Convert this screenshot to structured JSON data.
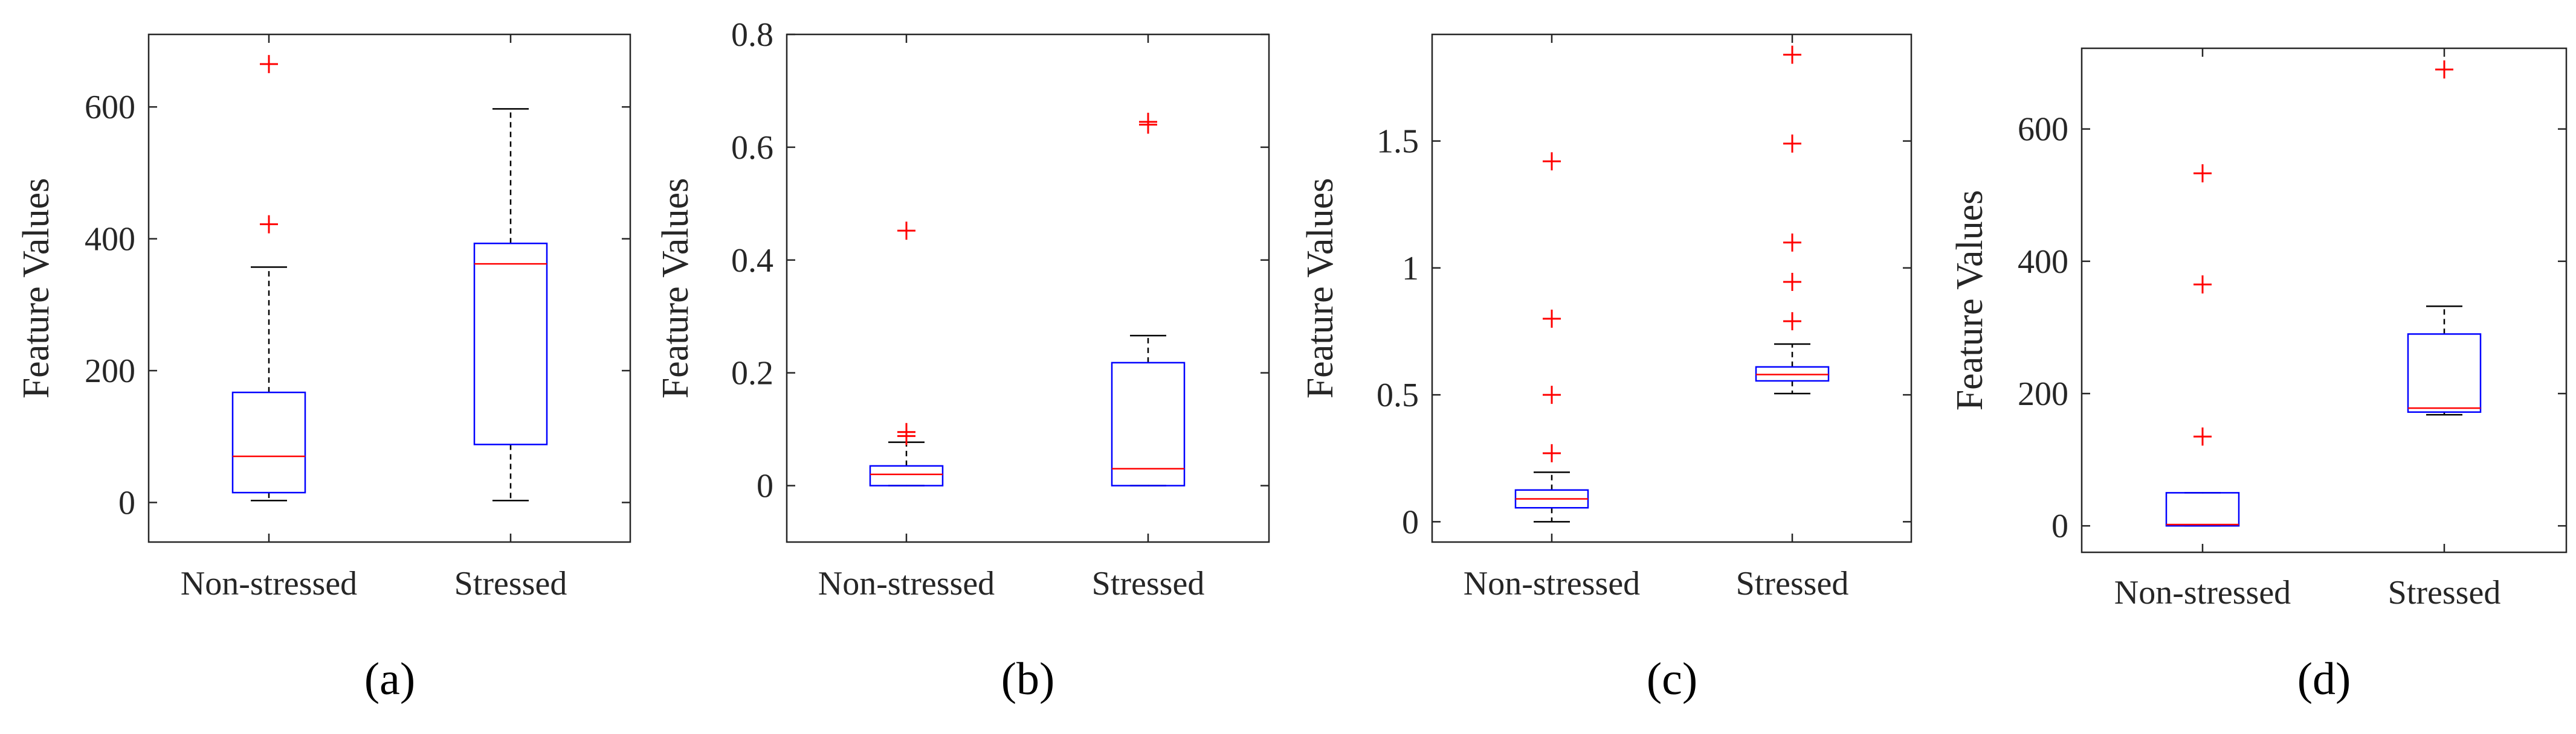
{
  "chart_data": [
    {
      "type": "boxplot",
      "panel_label": "(a)",
      "ylabel": "Feature Values",
      "xlabel": "",
      "categories": [
        "Non-stressed",
        "Stressed"
      ],
      "ylim": [
        -60,
        710
      ],
      "yticks": [
        0,
        200,
        400,
        600
      ],
      "ytick_labels": [
        "0",
        "200",
        "400",
        "600"
      ],
      "boxes": [
        {
          "category": "Non-stressed",
          "whisker_low": 3,
          "q1": 15,
          "median": 70,
          "q3": 167,
          "whisker_high": 357,
          "outliers": [
            422,
            665
          ]
        },
        {
          "category": "Stressed",
          "whisker_low": 3,
          "q1": 88,
          "median": 362,
          "q3": 393,
          "whisker_high": 597,
          "outliers": []
        }
      ]
    },
    {
      "type": "boxplot",
      "panel_label": "(b)",
      "ylabel": "Feature Values",
      "xlabel": "",
      "categories": [
        "Non-stressed",
        "Stressed"
      ],
      "ylim": [
        -0.1,
        0.8
      ],
      "yticks": [
        0,
        0.2,
        0.4,
        0.6,
        0.8
      ],
      "ytick_labels": [
        "0",
        "0.2",
        "0.4",
        "0.6",
        "0.8"
      ],
      "boxes": [
        {
          "category": "Non-stressed",
          "whisker_low": 0,
          "q1": 0,
          "median": 0.02,
          "q3": 0.035,
          "whisker_high": 0.077,
          "outliers": [
            0.088,
            0.095,
            0.452
          ]
        },
        {
          "category": "Stressed",
          "whisker_low": 0,
          "q1": 0,
          "median": 0.03,
          "q3": 0.218,
          "whisker_high": 0.266,
          "outliers": [
            0.64,
            0.645
          ]
        }
      ]
    },
    {
      "type": "boxplot",
      "panel_label": "(c)",
      "ylabel": "Feature Values",
      "xlabel": "",
      "categories": [
        "Non-stressed",
        "Stressed"
      ],
      "ylim": [
        -0.08,
        1.92
      ],
      "yticks": [
        0,
        0.5,
        1,
        1.5
      ],
      "ytick_labels": [
        "0",
        "0.5",
        "1",
        "1.5"
      ],
      "boxes": [
        {
          "category": "Non-stressed",
          "whisker_low": 0,
          "q1": 0.055,
          "median": 0.09,
          "q3": 0.125,
          "whisker_high": 0.195,
          "outliers": [
            0.27,
            0.5,
            0.8,
            1.42
          ]
        },
        {
          "category": "Stressed",
          "whisker_low": 0.505,
          "q1": 0.555,
          "median": 0.58,
          "q3": 0.61,
          "whisker_high": 0.7,
          "outliers": [
            0.79,
            0.945,
            1.1,
            1.49,
            1.84
          ]
        }
      ]
    },
    {
      "type": "boxplot",
      "panel_label": "(d)",
      "ylabel": "Feature Values",
      "xlabel": "",
      "categories": [
        "Non-stressed",
        "Stressed"
      ],
      "ylim": [
        -40,
        722
      ],
      "yticks": [
        0,
        200,
        400,
        600
      ],
      "ytick_labels": [
        "0",
        "200",
        "400",
        "600"
      ],
      "boxes": [
        {
          "category": "Non-stressed",
          "whisker_low": 0,
          "q1": 0,
          "median": 2,
          "q3": 50,
          "whisker_high": 50,
          "outliers": [
            135,
            365,
            533
          ]
        },
        {
          "category": "Stressed",
          "whisker_low": 168,
          "q1": 172,
          "median": 178,
          "q3": 290,
          "whisker_high": 332,
          "outliers": [
            690
          ]
        }
      ]
    }
  ]
}
